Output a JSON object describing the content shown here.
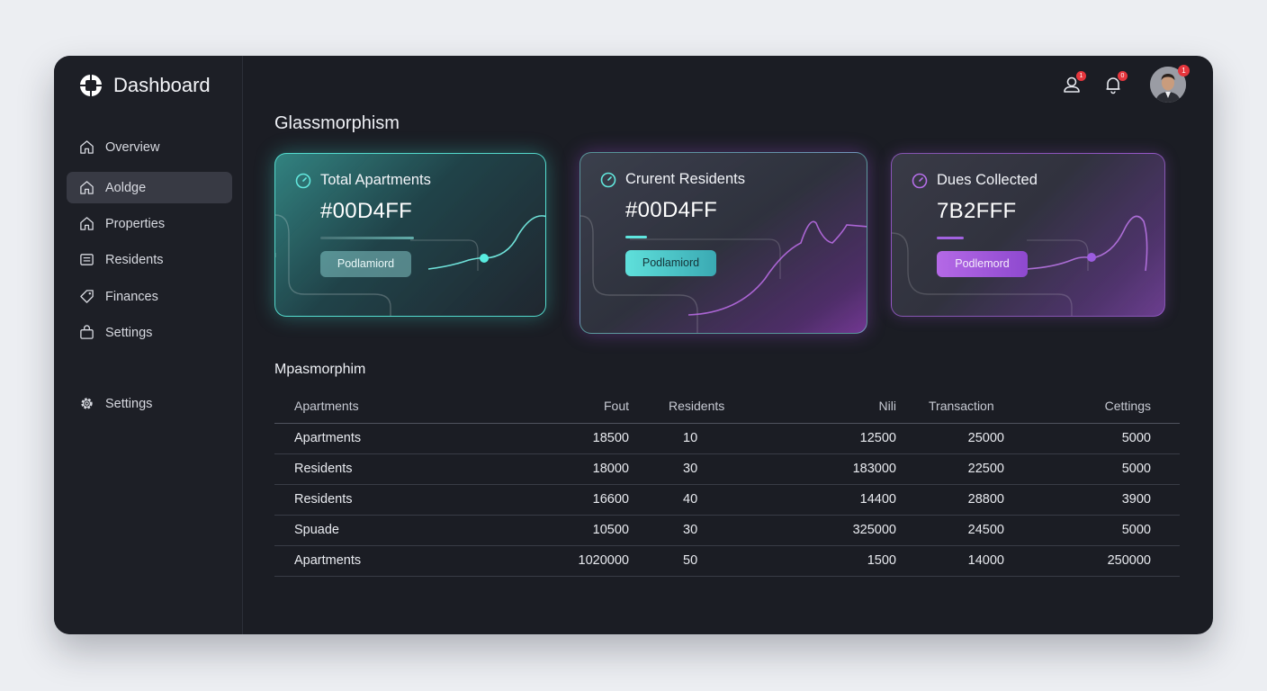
{
  "app": {
    "title": "Dashboard"
  },
  "sidebar": {
    "items": [
      {
        "label": "Overview",
        "icon": "home-icon",
        "active": false
      },
      {
        "label": "Aoldge",
        "icon": "home-icon",
        "active": true
      },
      {
        "label": "Properties",
        "icon": "home-icon",
        "active": false
      },
      {
        "label": "Residents",
        "icon": "list-icon",
        "active": false
      },
      {
        "label": "Finances",
        "icon": "tag-icon",
        "active": false
      },
      {
        "label": "Settings",
        "icon": "bag-icon",
        "active": false
      }
    ],
    "bottom_item": {
      "label": "Settings",
      "icon": "gear-icon"
    }
  },
  "topbar": {
    "user_badge": "1",
    "bell_badge": "0",
    "avatar_badge": "1"
  },
  "main": {
    "section_title": "Glassmorphism",
    "cards": [
      {
        "label": "Total Apartments",
        "value": "#00D4FF",
        "pill": "Podlamiord",
        "accent": "#3fd9d0"
      },
      {
        "label": "Crurent Residents",
        "value": "#00D4FF",
        "pill": "Podlamiord",
        "accent": "#38d6d6"
      },
      {
        "label": "Dues Collected",
        "value": "7B2FFF",
        "pill": "Podlemord",
        "accent": "#b45ce0"
      }
    ],
    "table_title": "Mpasmorphim",
    "table": {
      "headers": [
        "Apartments",
        "Fout",
        "Residents",
        "Nili",
        "Transaction",
        "Cettings"
      ],
      "rows": [
        [
          "Apartments",
          "18500",
          "10",
          "12500",
          "25000",
          "5000"
        ],
        [
          "Residents",
          "18000",
          "30",
          "183000",
          "22500",
          "5000"
        ],
        [
          "Residents",
          "16600",
          "40",
          "14400",
          "28800",
          "3900"
        ],
        [
          "Spuade",
          "10500",
          "30",
          "325000",
          "24500",
          "5000"
        ],
        [
          "Apartments",
          "1020000",
          "50",
          "1500",
          "14000",
          "250000"
        ]
      ]
    }
  },
  "colors": {
    "background": "#1b1d24",
    "sidebar": "#1d1f26",
    "cyan": "#3fd9d0",
    "purple": "#a55ee0",
    "badge": "#e5363d"
  }
}
